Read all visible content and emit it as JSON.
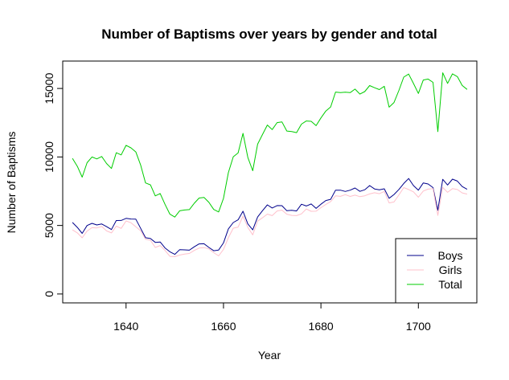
{
  "chart_data": {
    "type": "line",
    "title": "Number of Baptisms over years by gender and total",
    "xlabel": "Year",
    "ylabel": "Number of Baptisms",
    "xlim": [
      1627,
      1712
    ],
    "ylim": [
      -650,
      17000
    ],
    "x_ticks": [
      1640,
      1660,
      1680,
      1700
    ],
    "y_ticks": [
      0,
      5000,
      10000,
      15000
    ],
    "legend_position": "bottom-right",
    "x": [
      1629,
      1630,
      1631,
      1632,
      1633,
      1634,
      1635,
      1636,
      1637,
      1638,
      1639,
      1640,
      1641,
      1642,
      1643,
      1644,
      1645,
      1646,
      1647,
      1648,
      1649,
      1650,
      1651,
      1652,
      1653,
      1654,
      1655,
      1656,
      1657,
      1658,
      1659,
      1660,
      1661,
      1662,
      1663,
      1664,
      1665,
      1666,
      1667,
      1668,
      1669,
      1670,
      1671,
      1672,
      1673,
      1674,
      1675,
      1676,
      1677,
      1678,
      1679,
      1680,
      1681,
      1682,
      1683,
      1684,
      1685,
      1686,
      1687,
      1688,
      1689,
      1690,
      1691,
      1692,
      1693,
      1694,
      1695,
      1696,
      1697,
      1698,
      1699,
      1700,
      1701,
      1702,
      1703,
      1704,
      1705,
      1706,
      1707,
      1708,
      1709,
      1710
    ],
    "series": [
      {
        "name": "Boys",
        "color": "#00008b",
        "values": [
          5218,
          4858,
          4422,
          4994,
          5158,
          5035,
          5106,
          4917,
          4703,
          5359,
          5366,
          5518,
          5470,
          5460,
          4793,
          4107,
          4047,
          3768,
          3796,
          3363,
          3079,
          2890,
          3231,
          3220,
          3196,
          3441,
          3655,
          3668,
          3396,
          3157,
          3209,
          3724,
          4748,
          5216,
          5411,
          6041,
          5114,
          4678,
          5616,
          6073,
          6506,
          6278,
          6449,
          6443,
          6073,
          6113,
          6058,
          6552,
          6423,
          6568,
          6247,
          6548,
          6822,
          6909,
          7577,
          7575,
          7484,
          7575,
          7737,
          7487,
          7604,
          7909,
          7662,
          7602,
          7676,
          6985,
          7263,
          7632,
          8062,
          8426,
          7911,
          7578,
          8102,
          8031,
          7765,
          6113,
          8366,
          7952,
          8379,
          8239,
          7840,
          7640
        ]
      },
      {
        "name": "Girls",
        "color": "#ffc0cb",
        "values": [
          4683,
          4457,
          4102,
          4590,
          4839,
          4820,
          4928,
          4605,
          4457,
          4952,
          4784,
          5332,
          5200,
          4910,
          4617,
          3997,
          3919,
          3395,
          3536,
          3181,
          2746,
          2722,
          2840,
          2908,
          2959,
          3179,
          3349,
          3382,
          3289,
          3013,
          2781,
          3247,
          4107,
          4803,
          4881,
          5681,
          4858,
          4319,
          5322,
          5560,
          5829,
          5719,
          6061,
          6120,
          5822,
          5738,
          5717,
          5847,
          6203,
          6033,
          6041,
          6299,
          6533,
          6744,
          7158,
          7127,
          7246,
          7119,
          7214,
          7101,
          7167,
          7302,
          7392,
          7316,
          7483,
          6647,
          6713,
          7229,
          7767,
          7626,
          7452,
          7061,
          7514,
          7656,
          7683,
          5738,
          7779,
          7417,
          7687,
          7623,
          7380,
          7288
        ]
      },
      {
        "name": "Total",
        "color": "#00cd00",
        "values": [
          9901,
          9315,
          8524,
          9584,
          9997,
          9855,
          10034,
          9522,
          9160,
          10311,
          10150,
          10850,
          10670,
          10370,
          9410,
          8104,
          7966,
          7163,
          7332,
          6544,
          5825,
          5612,
          6071,
          6128,
          6155,
          6620,
          7004,
          7050,
          6685,
          6170,
          5990,
          6971,
          8855,
          10019,
          10292,
          11722,
          9972,
          8997,
          10938,
          11633,
          12335,
          11997,
          12510,
          12563,
          11895,
          11851,
          11775,
          12399,
          12626,
          12601,
          12288,
          12847,
          13355,
          13653,
          14735,
          14702,
          14730,
          14694,
          14951,
          14588,
          14771,
          15211,
          15054,
          14918,
          15159,
          13632,
          13976,
          14861,
          15829,
          16052,
          15363,
          14639,
          15616,
          15687,
          15448,
          11851,
          16145,
          15369,
          16066,
          15862,
          15220,
          14928
        ]
      }
    ]
  }
}
